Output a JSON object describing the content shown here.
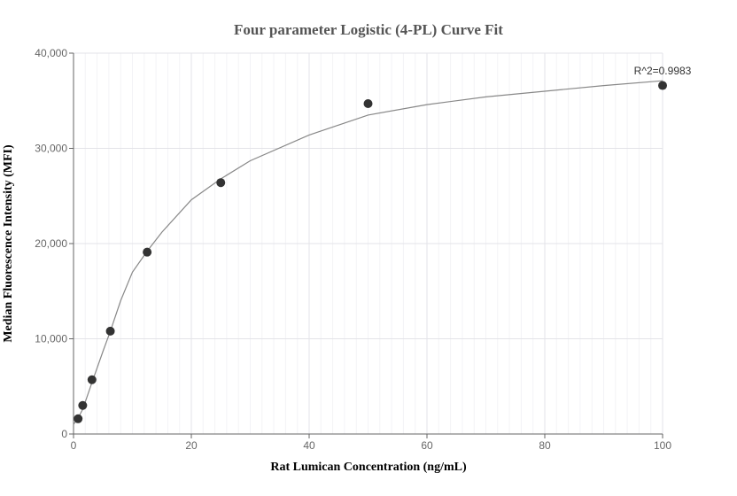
{
  "chart_data": {
    "type": "scatter",
    "title": "Four parameter Logistic (4-PL) Curve Fit",
    "xlabel": "Rat Lumican Concentration (ng/mL)",
    "ylabel": "Median Fluorescence Intensity (MFI)",
    "xlim": [
      0,
      100
    ],
    "ylim": [
      0,
      40000
    ],
    "x_ticks": [
      0,
      20,
      40,
      60,
      80,
      100
    ],
    "y_ticks": [
      0,
      10000,
      20000,
      30000,
      40000
    ],
    "x_tick_labels": [
      "0",
      "20",
      "40",
      "60",
      "80",
      "100"
    ],
    "y_tick_labels": [
      "0",
      "10,000",
      "20,000",
      "30,000",
      "40,000"
    ],
    "grid": true,
    "series": [
      {
        "x": [
          0.78,
          1.56,
          3.13,
          6.25,
          12.5,
          25,
          50,
          100
        ],
        "y": [
          1600,
          3000,
          5700,
          10800,
          19100,
          26400,
          34700,
          36600
        ],
        "color": "#333333"
      }
    ],
    "fit_curve": {
      "model": "4PL",
      "color": "#888888",
      "x": [
        0,
        0.78,
        1.56,
        3.13,
        5,
        6.25,
        8,
        10,
        12.5,
        15,
        20,
        25,
        30,
        40,
        50,
        60,
        70,
        80,
        90,
        100
      ],
      "y": [
        1000,
        1700,
        2600,
        5400,
        8700,
        10800,
        14000,
        17000,
        19200,
        21200,
        24600,
        26800,
        28700,
        31400,
        33500,
        34600,
        35400,
        36000,
        36600,
        37100
      ]
    },
    "annotation": "R^2=0.9983"
  }
}
